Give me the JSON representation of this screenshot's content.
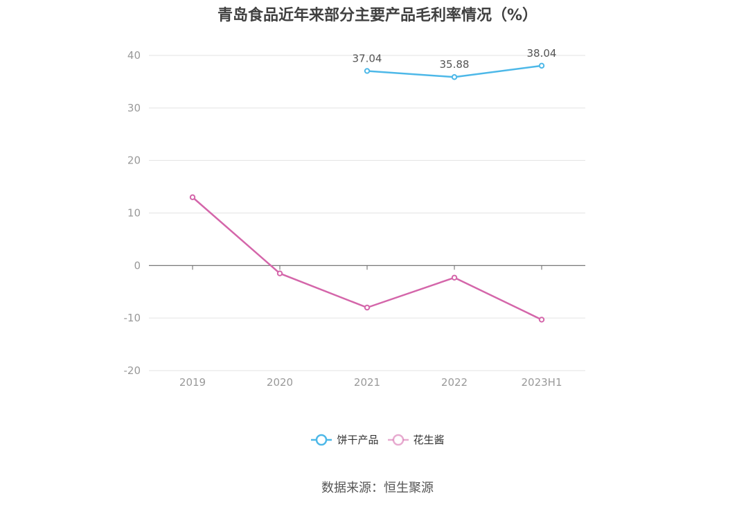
{
  "chart_data": {
    "type": "line",
    "title": "青岛食品近年来部分主要产品毛利率情况（%）",
    "categories": [
      "2019",
      "2020",
      "2021",
      "2022",
      "2023H1"
    ],
    "ylim": [
      -20,
      40
    ],
    "yticks": [
      -20,
      -10,
      0,
      10,
      20,
      30,
      40
    ],
    "grid": true,
    "legend_position": "bottom",
    "series": [
      {
        "name": "饼干产品",
        "color": "#4db8e8",
        "values": [
          null,
          null,
          37.04,
          35.88,
          38.04
        ],
        "labels": [
          null,
          null,
          "37.04",
          "35.88",
          "38.04"
        ]
      },
      {
        "name": "花生酱",
        "color": "#d466aa",
        "values": [
          13.0,
          -1.5,
          -8.0,
          -2.3,
          -10.3
        ],
        "labels": [
          null,
          null,
          null,
          null,
          null
        ]
      }
    ]
  },
  "source_text": "数据来源：恒生聚源"
}
